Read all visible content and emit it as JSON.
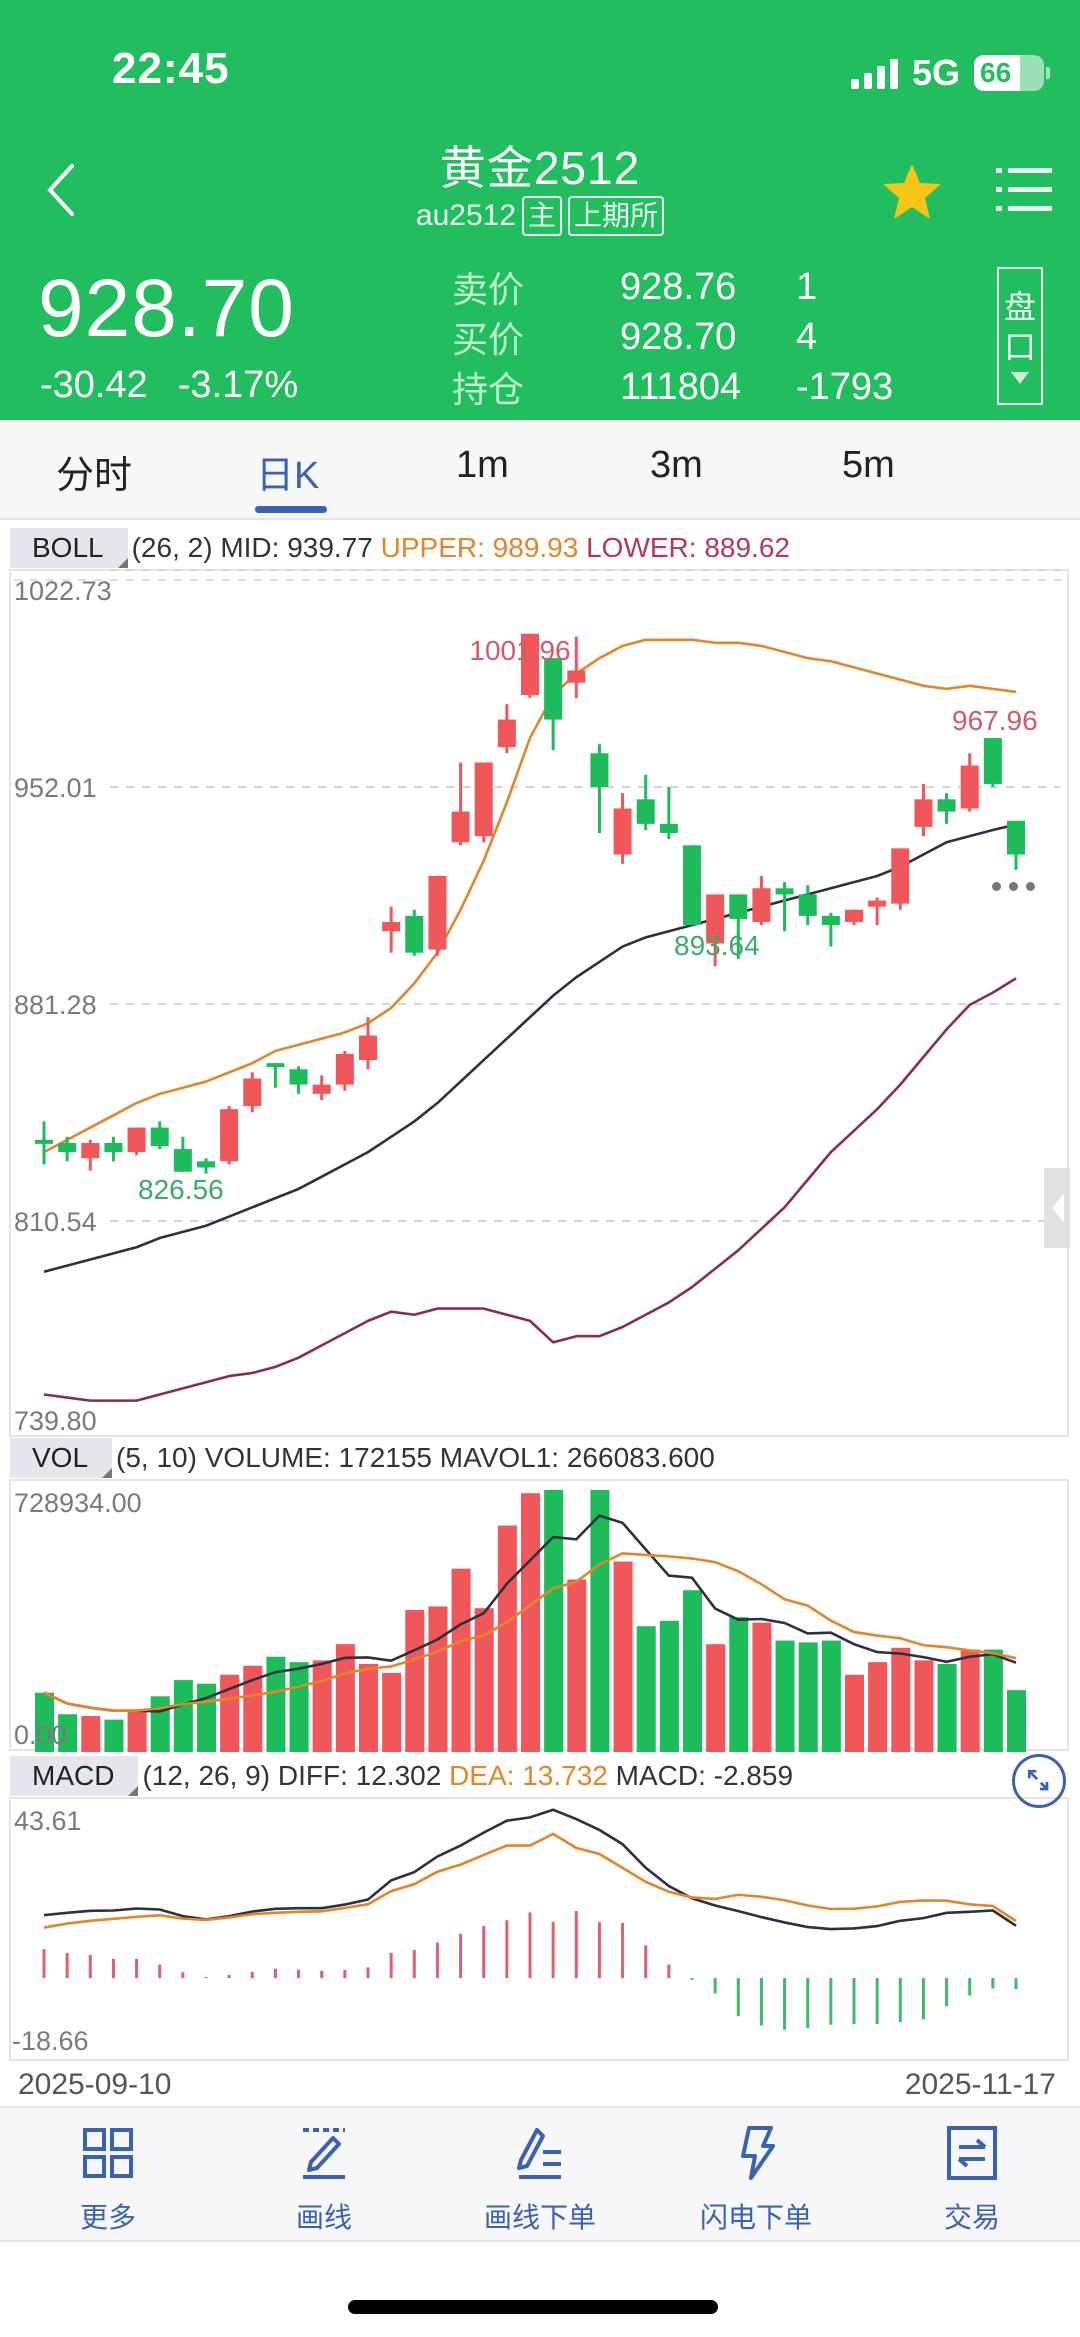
{
  "status_bar": {
    "time": "22:45",
    "network": "5G",
    "battery": "66"
  },
  "header": {
    "title": "黄金2512",
    "symbol": "au2512",
    "tags": [
      "主",
      "上期所"
    ],
    "last_price": "928.70",
    "change": "-30.42",
    "change_pct": "-3.17%",
    "quote": [
      {
        "label": "卖价",
        "value": "928.76",
        "qty": "1"
      },
      {
        "label": "买价",
        "value": "928.70",
        "qty": "4"
      },
      {
        "label": "持仓",
        "value": "111804",
        "qty": "-1793"
      }
    ],
    "pankou": [
      "盘",
      "口"
    ],
    "favorite": true,
    "colors": {
      "bg": "#22bd5e",
      "star": "#f5c518"
    }
  },
  "tabs": [
    {
      "label": "分时",
      "active": false
    },
    {
      "label": "日K",
      "active": true
    },
    {
      "label": "1m",
      "active": false
    },
    {
      "label": "3m",
      "active": false
    },
    {
      "label": "5m",
      "active": false
    }
  ],
  "boll": {
    "name": "BOLL",
    "params": "(26, 2)",
    "mid": "MID: 939.77",
    "upper": "UPPER: 989.93",
    "lower": "LOWER: 889.62"
  },
  "vol": {
    "name": "VOL",
    "params": "(5, 10)",
    "volume": "VOLUME: 172155",
    "mavol1": "MAVOL1: 266083.600",
    "max_label": "728934.00",
    "min_label": "0.00"
  },
  "macd": {
    "name": "MACD",
    "params": "(12, 26, 9)",
    "diff": "DIFF: 12.302",
    "dea": "DEA: 13.732",
    "macd": "MACD: -2.859",
    "max_label": "43.61",
    "min_label": "-18.66"
  },
  "dates": {
    "start": "2025-09-10",
    "end": "2025-11-17"
  },
  "toolbar": [
    {
      "label": "更多",
      "icon": "grid-icon"
    },
    {
      "label": "画线",
      "icon": "pen-draw-icon"
    },
    {
      "label": "画线下单",
      "icon": "pen-order-icon"
    },
    {
      "label": "闪电下单",
      "icon": "lightning-icon"
    },
    {
      "label": "交易",
      "icon": "exchange-icon"
    }
  ],
  "chart_data": [
    {
      "type": "candlestick",
      "title": "黄金2512 日K BOLL(26,2)",
      "y_ticks": [
        1022.73,
        952.01,
        881.28,
        810.54,
        739.8
      ],
      "ylim": [
        739.8,
        1022.73
      ],
      "annotations": [
        {
          "text": "1001.96",
          "kind": "high"
        },
        {
          "text": "967.96",
          "kind": "local-high"
        },
        {
          "text": "893.64",
          "kind": "local-low"
        },
        {
          "text": "826.56",
          "kind": "low"
        }
      ],
      "candles": [
        [
          837,
          836,
          843,
          829
        ],
        [
          836,
          833,
          838,
          830
        ],
        [
          831,
          836,
          837,
          827
        ],
        [
          836,
          833,
          838,
          830
        ],
        [
          833,
          841,
          841,
          832
        ],
        [
          841,
          835,
          843,
          834
        ],
        [
          834,
          826.6,
          838,
          826.6
        ],
        [
          830,
          828,
          831,
          826
        ],
        [
          830,
          847,
          848,
          829
        ],
        [
          848,
          857,
          859,
          846
        ],
        [
          862,
          861,
          862,
          854
        ],
        [
          860,
          855,
          861,
          852
        ],
        [
          852,
          855,
          858,
          850
        ],
        [
          855,
          865,
          866,
          853
        ],
        [
          863,
          871,
          877,
          860
        ],
        [
          905,
          908,
          913,
          898
        ],
        [
          910,
          898,
          912,
          897
        ],
        [
          899,
          923,
          923,
          897
        ],
        [
          934,
          944,
          960,
          933
        ],
        [
          936,
          960,
          960,
          934
        ],
        [
          965,
          974,
          979,
          963
        ],
        [
          982,
          1001.96,
          1001.96,
          981
        ],
        [
          994,
          974,
          994,
          964
        ],
        [
          986,
          990,
          1001,
          981
        ],
        [
          963,
          952,
          966,
          937
        ],
        [
          930,
          945,
          950,
          927
        ],
        [
          948,
          940,
          956,
          938
        ],
        [
          940,
          937,
          952,
          935
        ],
        [
          933,
          907,
          933,
          907
        ],
        [
          901,
          917,
          917,
          893.64
        ],
        [
          917,
          909,
          917,
          896
        ],
        [
          908,
          919,
          923,
          907
        ],
        [
          919,
          917,
          921,
          905
        ],
        [
          917,
          910,
          920,
          907
        ],
        [
          910,
          907,
          911,
          900
        ],
        [
          908,
          912,
          912,
          907
        ],
        [
          913,
          915,
          916,
          907
        ],
        [
          914,
          932,
          932,
          912
        ],
        [
          939,
          948,
          953,
          936
        ],
        [
          948,
          944,
          950,
          940
        ],
        [
          945,
          959,
          963,
          944
        ],
        [
          967.96,
          953,
          967.96,
          952
        ],
        [
          941,
          930,
          941,
          925
        ]
      ],
      "series": [
        {
          "name": "MID",
          "color": "#2c3040",
          "values": [
            794,
            796,
            798,
            800,
            802,
            805,
            807,
            809,
            812,
            815,
            818,
            821,
            825,
            829,
            833,
            838,
            843,
            849,
            856,
            863,
            870,
            877,
            884,
            890,
            895,
            900,
            903,
            905,
            907,
            909,
            911,
            913,
            915,
            917,
            919,
            921,
            923,
            926,
            930,
            934,
            936,
            938,
            939.77
          ]
        },
        {
          "name": "UPPER",
          "color": "#e2852b",
          "values": [
            833,
            837,
            841,
            845,
            849,
            852,
            854,
            856,
            859,
            862,
            866,
            868,
            870,
            872,
            875,
            880,
            888,
            898,
            912,
            928,
            947,
            968,
            982,
            989,
            994,
            998,
            1000,
            1000,
            1000,
            999,
            999,
            998,
            996,
            994,
            993,
            991,
            989,
            987,
            985,
            984,
            985,
            984,
            983
          ]
        },
        {
          "name": "LOWER",
          "color": "#8c2b52",
          "values": [
            754,
            753,
            752,
            752,
            752,
            754,
            756,
            758,
            760,
            761,
            763,
            766,
            770,
            774,
            778,
            781,
            780,
            782,
            782,
            782,
            780,
            778,
            771,
            773,
            773,
            776,
            780,
            784,
            789,
            795,
            801,
            808,
            815,
            824,
            833,
            840,
            847,
            855,
            864,
            873,
            881,
            885,
            889.62
          ]
        }
      ]
    },
    {
      "type": "bar",
      "title": "VOL (5,10)",
      "ylim": [
        0,
        728934
      ],
      "values": [
        165000,
        105000,
        100000,
        90000,
        115000,
        155000,
        200000,
        190000,
        215000,
        240000,
        265000,
        250000,
        255000,
        300000,
        245000,
        220000,
        395000,
        405000,
        510000,
        400000,
        630000,
        720000,
        728934,
        480000,
        728934,
        530000,
        350000,
        365000,
        450000,
        300000,
        375000,
        360000,
        310000,
        305000,
        310000,
        215000,
        250000,
        290000,
        255000,
        245000,
        285000,
        285000,
        172155
      ],
      "colors": [
        "g",
        "g",
        "r",
        "g",
        "r",
        "g",
        "g",
        "g",
        "r",
        "r",
        "g",
        "g",
        "r",
        "r",
        "r",
        "r",
        "r",
        "r",
        "r",
        "r",
        "r",
        "r",
        "g",
        "r",
        "g",
        "r",
        "g",
        "g",
        "g",
        "r",
        "g",
        "r",
        "g",
        "g",
        "g",
        "r",
        "r",
        "r",
        "r",
        "g",
        "r",
        "g",
        "g"
      ],
      "series": [
        {
          "name": "MAVOL1",
          "color": "#2c3040"
        },
        {
          "name": "MAVOL2",
          "color": "#e2852b"
        }
      ]
    },
    {
      "type": "bar+line",
      "title": "MACD (12,26,9)",
      "ylim": [
        -18.66,
        43.61
      ],
      "histogram": [
        7.5,
        6.5,
        6,
        5,
        5,
        3.5,
        1.5,
        0.3,
        0.8,
        1.6,
        2.4,
        2.2,
        1.9,
        2.1,
        2.8,
        6.5,
        7.3,
        9.2,
        11.5,
        13.5,
        15,
        17,
        14.6,
        17.4,
        14.5,
        14.3,
        8.5,
        3.5,
        -0.5,
        -4,
        -9.9,
        -12.3,
        -13.4,
        -13,
        -12.1,
        -11.9,
        -11.9,
        -11.4,
        -10.7,
        -7.3,
        -4.5,
        -2.7,
        -2.859
      ],
      "series": [
        {
          "name": "DIFF",
          "color": "#2c3040"
        },
        {
          "name": "DEA",
          "color": "#e2852b"
        }
      ]
    }
  ]
}
